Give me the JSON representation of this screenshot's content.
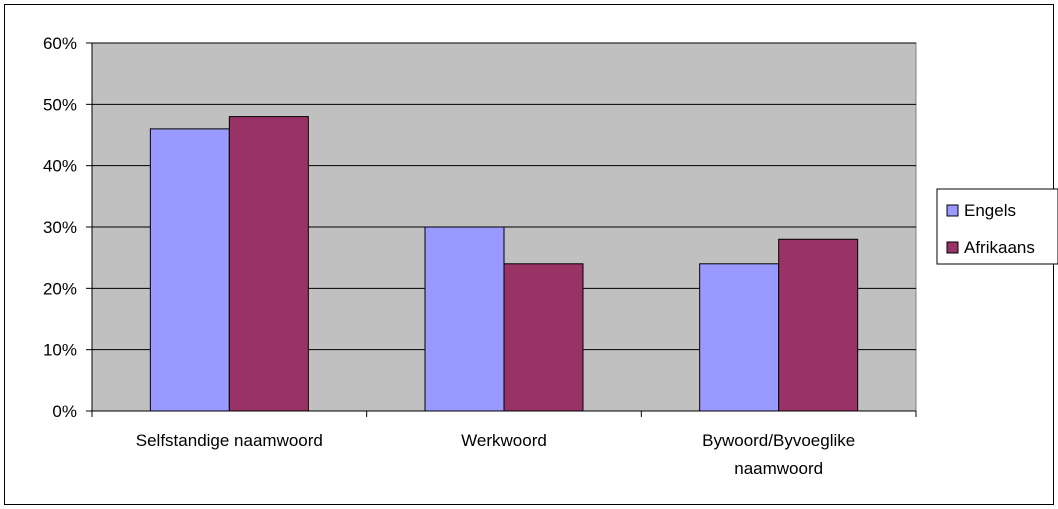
{
  "chart_data": {
    "type": "bar",
    "categories": [
      "Selfstandige naamwoord",
      "Werkwoord",
      "Bywoord/Byvoeglike naamwoord"
    ],
    "category_lines": [
      [
        "Selfstandige naamwoord"
      ],
      [
        "Werkwoord"
      ],
      [
        "Bywoord/Byvoeglike",
        "naamwoord"
      ]
    ],
    "series": [
      {
        "name": "Engels",
        "values": [
          0.46,
          0.3,
          0.24
        ],
        "color": "#9999FF"
      },
      {
        "name": "Afrikaans",
        "values": [
          0.48,
          0.24,
          0.28
        ],
        "color": "#993366"
      }
    ],
    "yticks": [
      "0%",
      "10%",
      "20%",
      "30%",
      "40%",
      "50%",
      "60%"
    ],
    "ylim": [
      0,
      0.6
    ],
    "plot_background": "#C0C0C0",
    "grid": true,
    "legend_position": "right",
    "title": "",
    "xlabel": "",
    "ylabel": ""
  }
}
